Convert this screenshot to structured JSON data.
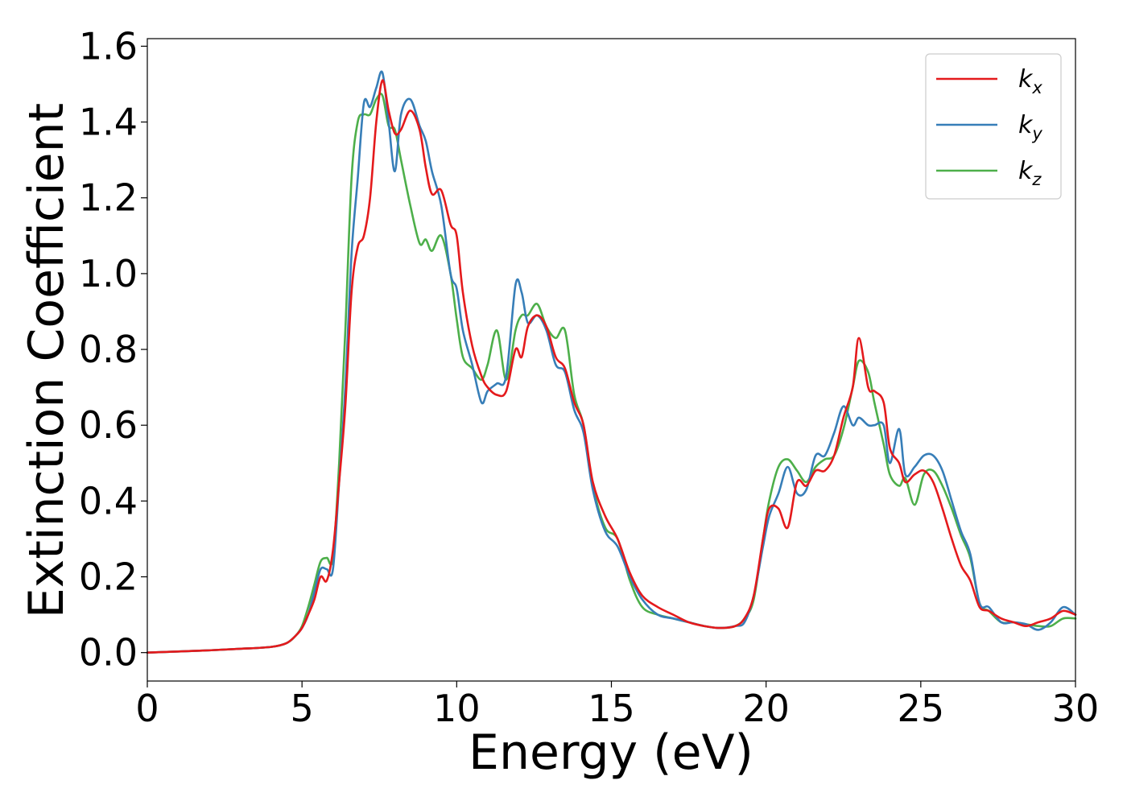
{
  "chart_data": {
    "type": "line",
    "title": "",
    "xlabel": "Energy (eV)",
    "ylabel": "Extinction Coefficient",
    "xlim": [
      0,
      30
    ],
    "ylim": [
      -0.075,
      1.62
    ],
    "xticks": [
      0,
      5,
      10,
      15,
      20,
      25,
      30
    ],
    "xtick_labels": [
      "0",
      "5",
      "10",
      "15",
      "20",
      "25",
      "30"
    ],
    "yticks": [
      0.0,
      0.2,
      0.4,
      0.6,
      0.8,
      1.0,
      1.2,
      1.4,
      1.6
    ],
    "ytick_labels": [
      "0.0",
      "0.2",
      "0.4",
      "0.6",
      "0.8",
      "1.0",
      "1.2",
      "1.4",
      "1.6"
    ],
    "grid": false,
    "legend_position": "top-right",
    "series": [
      {
        "name": "k_x",
        "label_base": "k",
        "label_sub": "x",
        "color": "#e41a1c",
        "x": [
          0,
          1,
          2,
          3,
          4,
          4.5,
          4.8,
          5.0,
          5.2,
          5.4,
          5.6,
          5.8,
          6.0,
          6.2,
          6.4,
          6.6,
          6.8,
          7.0,
          7.2,
          7.4,
          7.6,
          7.8,
          8.0,
          8.2,
          8.5,
          8.8,
          9.0,
          9.2,
          9.5,
          9.8,
          10.0,
          10.2,
          10.5,
          10.8,
          11.0,
          11.3,
          11.6,
          11.9,
          12.1,
          12.3,
          12.6,
          12.9,
          13.2,
          13.5,
          13.8,
          14.1,
          14.4,
          14.8,
          15.2,
          15.6,
          16.0,
          16.5,
          17.0,
          17.5,
          18.0,
          18.5,
          19.0,
          19.3,
          19.6,
          19.9,
          20.1,
          20.4,
          20.7,
          21.0,
          21.3,
          21.6,
          21.9,
          22.2,
          22.5,
          22.8,
          23.0,
          23.3,
          23.5,
          23.8,
          24.0,
          24.3,
          24.5,
          24.8,
          25.1,
          25.4,
          25.7,
          26.0,
          26.3,
          26.6,
          26.9,
          27.2,
          27.6,
          28.0,
          28.4,
          28.8,
          29.2,
          29.6,
          30.0
        ],
        "values": [
          0.0,
          0.003,
          0.006,
          0.01,
          0.015,
          0.025,
          0.045,
          0.065,
          0.1,
          0.14,
          0.2,
          0.19,
          0.27,
          0.45,
          0.65,
          0.95,
          1.07,
          1.1,
          1.2,
          1.4,
          1.51,
          1.43,
          1.37,
          1.38,
          1.43,
          1.38,
          1.28,
          1.21,
          1.22,
          1.13,
          1.1,
          0.95,
          0.81,
          0.73,
          0.7,
          0.68,
          0.69,
          0.8,
          0.78,
          0.86,
          0.89,
          0.86,
          0.78,
          0.75,
          0.66,
          0.6,
          0.45,
          0.36,
          0.3,
          0.21,
          0.15,
          0.12,
          0.1,
          0.08,
          0.07,
          0.065,
          0.07,
          0.09,
          0.15,
          0.3,
          0.38,
          0.38,
          0.33,
          0.45,
          0.44,
          0.48,
          0.48,
          0.52,
          0.62,
          0.7,
          0.83,
          0.7,
          0.69,
          0.66,
          0.54,
          0.5,
          0.45,
          0.47,
          0.48,
          0.45,
          0.38,
          0.3,
          0.23,
          0.19,
          0.12,
          0.11,
          0.09,
          0.08,
          0.07,
          0.08,
          0.09,
          0.11,
          0.1
        ]
      },
      {
        "name": "k_y",
        "label_base": "k",
        "label_sub": "y",
        "color": "#377eb8",
        "x": [
          0,
          1,
          2,
          3,
          4,
          4.5,
          4.8,
          5.0,
          5.2,
          5.4,
          5.6,
          5.8,
          6.0,
          6.2,
          6.4,
          6.6,
          6.8,
          7.0,
          7.2,
          7.4,
          7.6,
          7.8,
          8.0,
          8.2,
          8.5,
          8.8,
          9.0,
          9.2,
          9.5,
          9.8,
          10.0,
          10.2,
          10.5,
          10.8,
          11.0,
          11.3,
          11.6,
          11.9,
          12.1,
          12.3,
          12.6,
          12.9,
          13.2,
          13.5,
          13.8,
          14.1,
          14.4,
          14.8,
          15.2,
          15.6,
          16.0,
          16.5,
          17.0,
          17.5,
          18.0,
          18.5,
          19.0,
          19.3,
          19.6,
          19.9,
          20.1,
          20.4,
          20.7,
          21.0,
          21.3,
          21.6,
          21.9,
          22.2,
          22.5,
          22.8,
          23.0,
          23.3,
          23.5,
          23.8,
          24.0,
          24.3,
          24.5,
          24.8,
          25.1,
          25.4,
          25.7,
          26.0,
          26.3,
          26.6,
          26.9,
          27.2,
          27.6,
          28.0,
          28.4,
          28.8,
          29.2,
          29.6,
          30.0
        ],
        "values": [
          0.0,
          0.003,
          0.006,
          0.01,
          0.015,
          0.025,
          0.045,
          0.065,
          0.1,
          0.16,
          0.22,
          0.22,
          0.22,
          0.45,
          0.7,
          1.05,
          1.25,
          1.45,
          1.44,
          1.49,
          1.53,
          1.4,
          1.27,
          1.42,
          1.46,
          1.39,
          1.35,
          1.27,
          1.18,
          1.0,
          0.96,
          0.85,
          0.76,
          0.66,
          0.69,
          0.71,
          0.73,
          0.97,
          0.95,
          0.87,
          0.89,
          0.85,
          0.76,
          0.74,
          0.64,
          0.58,
          0.43,
          0.32,
          0.28,
          0.2,
          0.14,
          0.1,
          0.09,
          0.08,
          0.07,
          0.065,
          0.07,
          0.08,
          0.15,
          0.28,
          0.36,
          0.42,
          0.49,
          0.42,
          0.43,
          0.52,
          0.52,
          0.58,
          0.65,
          0.6,
          0.62,
          0.6,
          0.6,
          0.6,
          0.5,
          0.59,
          0.47,
          0.49,
          0.52,
          0.52,
          0.48,
          0.4,
          0.32,
          0.26,
          0.13,
          0.12,
          0.08,
          0.08,
          0.075,
          0.06,
          0.08,
          0.12,
          0.1
        ]
      },
      {
        "name": "k_z",
        "label_base": "k",
        "label_sub": "z",
        "color": "#4daf4a",
        "x": [
          0,
          1,
          2,
          3,
          4,
          4.5,
          4.8,
          5.0,
          5.2,
          5.4,
          5.6,
          5.8,
          6.0,
          6.2,
          6.4,
          6.6,
          6.8,
          7.0,
          7.2,
          7.4,
          7.6,
          7.8,
          8.0,
          8.2,
          8.5,
          8.8,
          9.0,
          9.2,
          9.5,
          9.8,
          10.0,
          10.2,
          10.5,
          10.8,
          11.0,
          11.3,
          11.6,
          11.9,
          12.1,
          12.3,
          12.6,
          12.9,
          13.2,
          13.5,
          13.8,
          14.1,
          14.4,
          14.8,
          15.2,
          15.6,
          16.0,
          16.5,
          17.0,
          17.5,
          18.0,
          18.5,
          19.0,
          19.3,
          19.6,
          19.9,
          20.1,
          20.4,
          20.7,
          21.0,
          21.3,
          21.6,
          21.9,
          22.2,
          22.5,
          22.8,
          23.0,
          23.3,
          23.5,
          23.8,
          24.0,
          24.3,
          24.5,
          24.8,
          25.1,
          25.4,
          25.7,
          26.0,
          26.3,
          26.6,
          26.9,
          27.2,
          27.6,
          28.0,
          28.4,
          28.8,
          29.2,
          29.6,
          30.0
        ],
        "values": [
          0.0,
          0.003,
          0.006,
          0.01,
          0.015,
          0.025,
          0.045,
          0.07,
          0.12,
          0.18,
          0.24,
          0.25,
          0.25,
          0.5,
          0.85,
          1.25,
          1.4,
          1.42,
          1.42,
          1.46,
          1.47,
          1.39,
          1.38,
          1.3,
          1.18,
          1.08,
          1.09,
          1.06,
          1.1,
          1.0,
          0.88,
          0.78,
          0.75,
          0.72,
          0.76,
          0.85,
          0.72,
          0.85,
          0.89,
          0.89,
          0.92,
          0.86,
          0.83,
          0.85,
          0.68,
          0.6,
          0.44,
          0.33,
          0.3,
          0.19,
          0.12,
          0.1,
          0.09,
          0.08,
          0.07,
          0.065,
          0.07,
          0.09,
          0.14,
          0.3,
          0.4,
          0.49,
          0.51,
          0.48,
          0.45,
          0.49,
          0.51,
          0.52,
          0.59,
          0.7,
          0.77,
          0.74,
          0.66,
          0.55,
          0.47,
          0.44,
          0.46,
          0.39,
          0.47,
          0.48,
          0.44,
          0.38,
          0.31,
          0.25,
          0.13,
          0.11,
          0.08,
          0.08,
          0.075,
          0.07,
          0.07,
          0.09,
          0.09
        ]
      }
    ]
  }
}
